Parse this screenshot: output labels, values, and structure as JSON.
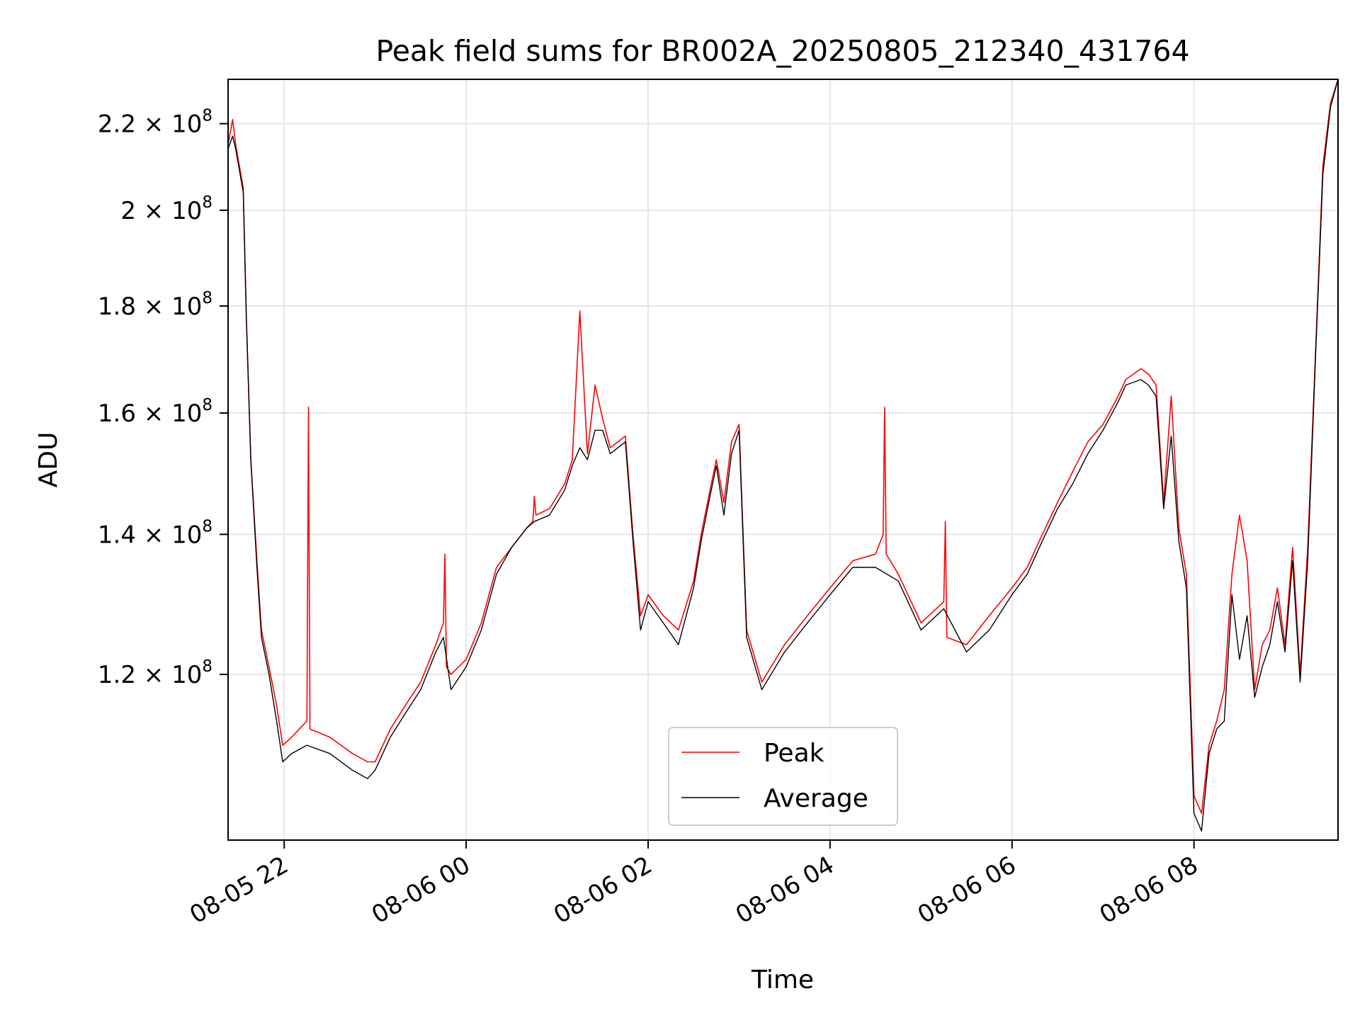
{
  "chart_data": {
    "type": "line",
    "title": "Peak field sums for BR002A_20250805_212340_431764",
    "xlabel": "Time",
    "ylabel": "ADU",
    "y_scale": "log",
    "ylim": [
      100000000,
      231000000
    ],
    "xlim": [
      "2025-08-05 21:23",
      "2025-08-06 09:35"
    ],
    "grid": true,
    "legend_position": "lower center",
    "x_ticks": [
      {
        "t": "2025-08-05 22:00",
        "label": "08-05 22"
      },
      {
        "t": "2025-08-06 00:00",
        "label": "08-06 00"
      },
      {
        "t": "2025-08-06 02:00",
        "label": "08-06 02"
      },
      {
        "t": "2025-08-06 04:00",
        "label": "08-06 04"
      },
      {
        "t": "2025-08-06 06:00",
        "label": "08-06 06"
      },
      {
        "t": "2025-08-06 08:00",
        "label": "08-06 08"
      }
    ],
    "y_ticks": [
      {
        "value": 120000000,
        "mantissa": "1.2",
        "exp": "8"
      },
      {
        "value": 140000000,
        "mantissa": "1.4",
        "exp": "8"
      },
      {
        "value": 160000000,
        "mantissa": "1.6",
        "exp": "8"
      },
      {
        "value": 180000000,
        "mantissa": "1.8",
        "exp": "8"
      },
      {
        "value": 200000000,
        "mantissa": "2",
        "exp": "8"
      },
      {
        "value": 220000000,
        "mantissa": "2.2",
        "exp": "8"
      }
    ],
    "y_tick_base": "10",
    "y_tick_times": "×",
    "series": [
      {
        "name": "Peak",
        "color": "#ff0000",
        "x": [
          "2025-08-05 21:23",
          "2025-08-05 21:26",
          "2025-08-05 21:28",
          "2025-08-05 21:33",
          "2025-08-05 21:35",
          "2025-08-05 21:38",
          "2025-08-05 21:42",
          "2025-08-05 21:45",
          "2025-08-05 21:50",
          "2025-08-05 21:55",
          "2025-08-05 21:59",
          "2025-08-05 22:05",
          "2025-08-05 22:15",
          "2025-08-05 22:16",
          "2025-08-05 22:17",
          "2025-08-05 22:30",
          "2025-08-05 22:45",
          "2025-08-05 22:55",
          "2025-08-05 23:00",
          "2025-08-05 23:10",
          "2025-08-05 23:20",
          "2025-08-05 23:30",
          "2025-08-05 23:40",
          "2025-08-05 23:45",
          "2025-08-05 23:46",
          "2025-08-05 23:47",
          "2025-08-05 23:50",
          "2025-08-06 00:00",
          "2025-08-06 00:10",
          "2025-08-06 00:20",
          "2025-08-06 00:30",
          "2025-08-06 00:40",
          "2025-08-06 00:44",
          "2025-08-06 00:45",
          "2025-08-06 00:46",
          "2025-08-06 00:55",
          "2025-08-06 01:05",
          "2025-08-06 01:10",
          "2025-08-06 01:15",
          "2025-08-06 01:20",
          "2025-08-06 01:25",
          "2025-08-06 01:30",
          "2025-08-06 01:35",
          "2025-08-06 01:45",
          "2025-08-06 01:50",
          "2025-08-06 01:55",
          "2025-08-06 02:00",
          "2025-08-06 02:10",
          "2025-08-06 02:20",
          "2025-08-06 02:30",
          "2025-08-06 02:35",
          "2025-08-06 02:40",
          "2025-08-06 02:45",
          "2025-08-06 02:50",
          "2025-08-06 02:55",
          "2025-08-06 03:00",
          "2025-08-06 03:05",
          "2025-08-06 03:15",
          "2025-08-06 03:30",
          "2025-08-06 03:45",
          "2025-08-06 04:00",
          "2025-08-06 04:15",
          "2025-08-06 04:30",
          "2025-08-06 04:35",
          "2025-08-06 04:36",
          "2025-08-06 04:37",
          "2025-08-06 04:45",
          "2025-08-06 05:00",
          "2025-08-06 05:15",
          "2025-08-06 05:16",
          "2025-08-06 05:17",
          "2025-08-06 05:30",
          "2025-08-06 05:45",
          "2025-08-06 06:00",
          "2025-08-06 06:10",
          "2025-08-06 06:20",
          "2025-08-06 06:30",
          "2025-08-06 06:40",
          "2025-08-06 06:50",
          "2025-08-06 07:00",
          "2025-08-06 07:10",
          "2025-08-06 07:15",
          "2025-08-06 07:25",
          "2025-08-06 07:30",
          "2025-08-06 07:35",
          "2025-08-06 07:40",
          "2025-08-06 07:45",
          "2025-08-06 07:50",
          "2025-08-06 07:55",
          "2025-08-06 08:00",
          "2025-08-06 08:05",
          "2025-08-06 08:10",
          "2025-08-06 08:15",
          "2025-08-06 08:20",
          "2025-08-06 08:25",
          "2025-08-06 08:30",
          "2025-08-06 08:35",
          "2025-08-06 08:40",
          "2025-08-06 08:45",
          "2025-08-06 08:50",
          "2025-08-06 08:55",
          "2025-08-06 09:00",
          "2025-08-06 09:05",
          "2025-08-06 09:10",
          "2025-08-06 09:15",
          "2025-08-06 09:20",
          "2025-08-06 09:25",
          "2025-08-06 09:30",
          "2025-08-06 09:35"
        ],
        "y": [
          215000000,
          221000000,
          215000000,
          205000000,
          178000000,
          152000000,
          136000000,
          126000000,
          121000000,
          116000000,
          111000000,
          112000000,
          114000000,
          161000000,
          113000000,
          112000000,
          110000000,
          109000000,
          109000000,
          113000000,
          116000000,
          119000000,
          124000000,
          127000000,
          137000000,
          121000000,
          120000000,
          122000000,
          127000000,
          135000000,
          138000000,
          141000000,
          142000000,
          146000000,
          143000000,
          144000000,
          148000000,
          152000000,
          179000000,
          153000000,
          165000000,
          159000000,
          154000000,
          156000000,
          140000000,
          128000000,
          131000000,
          128000000,
          126000000,
          133000000,
          140000000,
          146000000,
          152000000,
          145000000,
          155000000,
          158000000,
          126000000,
          119000000,
          124000000,
          128000000,
          132000000,
          136000000,
          137000000,
          140000000,
          161000000,
          137000000,
          134000000,
          127000000,
          130000000,
          142000000,
          125000000,
          124000000,
          128000000,
          132000000,
          135000000,
          140000000,
          145000000,
          150000000,
          155000000,
          158000000,
          163000000,
          166000000,
          168000000,
          167000000,
          165000000,
          145000000,
          163000000,
          141000000,
          134000000,
          105000000,
          103000000,
          111000000,
          114000000,
          118000000,
          134000000,
          143000000,
          136000000,
          118000000,
          124000000,
          126000000,
          132000000,
          124000000,
          138000000,
          120000000,
          138000000,
          170000000,
          210000000,
          225000000,
          231000000
        ]
      },
      {
        "name": "Average",
        "color": "#000000",
        "x": [
          "2025-08-05 21:23",
          "2025-08-05 21:26",
          "2025-08-05 21:28",
          "2025-08-05 21:33",
          "2025-08-05 21:35",
          "2025-08-05 21:38",
          "2025-08-05 21:42",
          "2025-08-05 21:45",
          "2025-08-05 21:50",
          "2025-08-05 21:55",
          "2025-08-05 21:59",
          "2025-08-05 22:05",
          "2025-08-05 22:15",
          "2025-08-05 22:30",
          "2025-08-05 22:45",
          "2025-08-05 22:55",
          "2025-08-05 23:00",
          "2025-08-05 23:10",
          "2025-08-05 23:20",
          "2025-08-05 23:30",
          "2025-08-05 23:40",
          "2025-08-05 23:45",
          "2025-08-05 23:50",
          "2025-08-06 00:00",
          "2025-08-06 00:10",
          "2025-08-06 00:20",
          "2025-08-06 00:30",
          "2025-08-06 00:40",
          "2025-08-06 00:45",
          "2025-08-06 00:55",
          "2025-08-06 01:05",
          "2025-08-06 01:10",
          "2025-08-06 01:15",
          "2025-08-06 01:20",
          "2025-08-06 01:25",
          "2025-08-06 01:30",
          "2025-08-06 01:35",
          "2025-08-06 01:45",
          "2025-08-06 01:50",
          "2025-08-06 01:55",
          "2025-08-06 02:00",
          "2025-08-06 02:10",
          "2025-08-06 02:20",
          "2025-08-06 02:30",
          "2025-08-06 02:35",
          "2025-08-06 02:40",
          "2025-08-06 02:45",
          "2025-08-06 02:50",
          "2025-08-06 02:55",
          "2025-08-06 03:00",
          "2025-08-06 03:05",
          "2025-08-06 03:15",
          "2025-08-06 03:30",
          "2025-08-06 03:45",
          "2025-08-06 04:00",
          "2025-08-06 04:15",
          "2025-08-06 04:30",
          "2025-08-06 04:45",
          "2025-08-06 05:00",
          "2025-08-06 05:15",
          "2025-08-06 05:30",
          "2025-08-06 05:45",
          "2025-08-06 06:00",
          "2025-08-06 06:10",
          "2025-08-06 06:20",
          "2025-08-06 06:30",
          "2025-08-06 06:40",
          "2025-08-06 06:50",
          "2025-08-06 07:00",
          "2025-08-06 07:10",
          "2025-08-06 07:15",
          "2025-08-06 07:25",
          "2025-08-06 07:30",
          "2025-08-06 07:35",
          "2025-08-06 07:40",
          "2025-08-06 07:45",
          "2025-08-06 07:50",
          "2025-08-06 07:55",
          "2025-08-06 08:00",
          "2025-08-06 08:05",
          "2025-08-06 08:10",
          "2025-08-06 08:15",
          "2025-08-06 08:20",
          "2025-08-06 08:25",
          "2025-08-06 08:30",
          "2025-08-06 08:35",
          "2025-08-06 08:40",
          "2025-08-06 08:45",
          "2025-08-06 08:50",
          "2025-08-06 08:55",
          "2025-08-06 09:00",
          "2025-08-06 09:05",
          "2025-08-06 09:10",
          "2025-08-06 09:15",
          "2025-08-06 09:20",
          "2025-08-06 09:25",
          "2025-08-06 09:30",
          "2025-08-06 09:35"
        ],
        "y": [
          214000000,
          217000000,
          214000000,
          204000000,
          178000000,
          152000000,
          135000000,
          125000000,
          120000000,
          114000000,
          109000000,
          110000000,
          111000000,
          110000000,
          108000000,
          107000000,
          108000000,
          112000000,
          115000000,
          118000000,
          123000000,
          125000000,
          118000000,
          121000000,
          126000000,
          134000000,
          138000000,
          141000000,
          142000000,
          143000000,
          147000000,
          151000000,
          154000000,
          152000000,
          157000000,
          157000000,
          153000000,
          155000000,
          139000000,
          126000000,
          130000000,
          127000000,
          124000000,
          132000000,
          139000000,
          145000000,
          151000000,
          143000000,
          153000000,
          157000000,
          125000000,
          118000000,
          123000000,
          127000000,
          131000000,
          135000000,
          135000000,
          133000000,
          126000000,
          129000000,
          123000000,
          126000000,
          131000000,
          134000000,
          139000000,
          144000000,
          148000000,
          153000000,
          157000000,
          162000000,
          165000000,
          166000000,
          165000000,
          163000000,
          144000000,
          156000000,
          139000000,
          132000000,
          103000000,
          101000000,
          110000000,
          113000000,
          114000000,
          131000000,
          122000000,
          128000000,
          117000000,
          121000000,
          124000000,
          130000000,
          123000000,
          136000000,
          119000000,
          136000000,
          169000000,
          208000000,
          224000000,
          231000000
        ]
      }
    ]
  }
}
